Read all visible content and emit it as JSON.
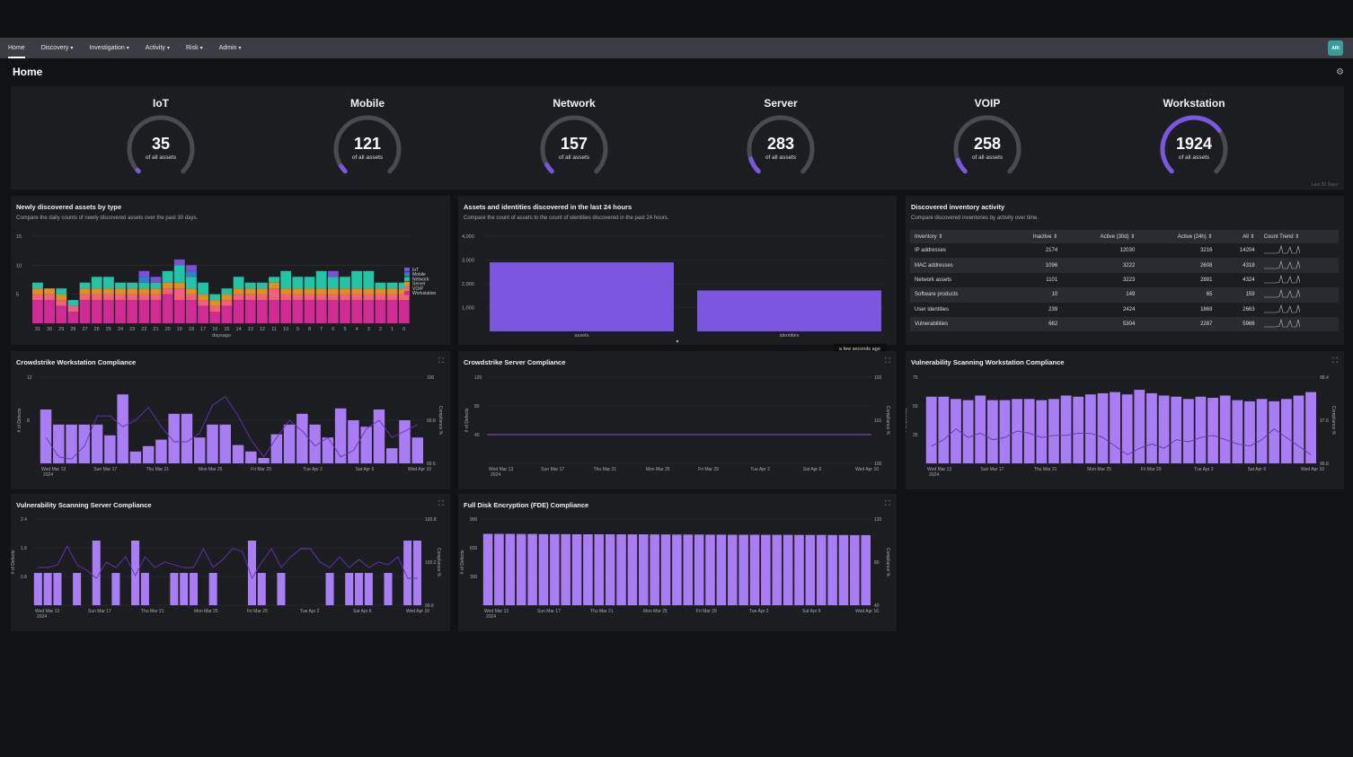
{
  "nav": {
    "items": [
      {
        "label": "Home",
        "active": true,
        "dropdown": false
      },
      {
        "label": "Discovery",
        "active": false,
        "dropdown": true
      },
      {
        "label": "Investigation",
        "active": false,
        "dropdown": true
      },
      {
        "label": "Activity",
        "active": false,
        "dropdown": true
      },
      {
        "label": "Risk",
        "active": false,
        "dropdown": true
      },
      {
        "label": "Admin",
        "active": false,
        "dropdown": true
      }
    ],
    "caret": "▾",
    "avatar": "ARI"
  },
  "page": {
    "title": "Home",
    "settings_icon": "gear-icon"
  },
  "colors": {
    "accent": "#7b56e0",
    "purple_light": "#a97ef5",
    "iot": "#7b4fd8",
    "mobile": "#2f7fd0",
    "network": "#22c3a6",
    "server": "#e0901e",
    "voip": "#f2607a",
    "workstation": "#d02a95"
  },
  "gauges": {
    "items": [
      {
        "title": "IoT",
        "value": "35",
        "sub": "of all assets",
        "fraction": 0.009
      },
      {
        "title": "Mobile",
        "value": "121",
        "sub": "of all assets",
        "fraction": 0.045
      },
      {
        "title": "Network",
        "value": "157",
        "sub": "of all assets",
        "fraction": 0.055
      },
      {
        "title": "Server",
        "value": "283",
        "sub": "of all assets",
        "fraction": 0.1
      },
      {
        "title": "VOIP",
        "value": "258",
        "sub": "of all assets",
        "fraction": 0.09
      },
      {
        "title": "Workstation",
        "value": "1924",
        "sub": "of all assets",
        "fraction": 0.7
      }
    ],
    "footnote": "Last 30 Days"
  },
  "panels": {
    "newly": {
      "title": "Newly discovered assets by type",
      "sub": "Compare the daily counts of newly discovered assets over the past 30 days."
    },
    "assets24": {
      "title": "Assets and identities discovered in the last 24 hours",
      "sub": "Compare the count of assets to the count of identities discovered in the past 24 hours.",
      "tooltip": "a few seconds ago"
    },
    "inventory": {
      "title": "Discovered inventory activity",
      "sub": "Compare discovered inventories by activity over time.",
      "columns": [
        "Inventory ⇕",
        "Inactive ⇕",
        "Active (30d) ⇕",
        "Active (24h) ⇕",
        "All ⇕",
        "Count Trend ⇕"
      ],
      "rows": [
        [
          "IP addresses",
          "2174",
          "12030",
          "3216",
          "14204"
        ],
        [
          "MAC addresses",
          "1096",
          "3222",
          "2608",
          "4318"
        ],
        [
          "Network assets",
          "1101",
          "3223",
          "2881",
          "4324"
        ],
        [
          "Software products",
          "10",
          "149",
          "65",
          "159"
        ],
        [
          "User identities",
          "239",
          "2424",
          "1869",
          "2663"
        ],
        [
          "Vulnerabilities",
          "662",
          "5304",
          "2287",
          "5966"
        ]
      ]
    },
    "cs_ws": {
      "title": "Crowdstrike Workstation Compliance"
    },
    "cs_srv": {
      "title": "Crowdstrike Server Compliance"
    },
    "vs_ws": {
      "title": "Vulnerability Scanning Workstation Compliance"
    },
    "vs_srv": {
      "title": "Vulnerability Scanning Server Compliance"
    },
    "fde": {
      "title": "Full Disk Encryption (FDE) Compliance"
    },
    "expand_icon": "expand-icon"
  },
  "chart_data": [
    {
      "type": "bar",
      "stacked": true,
      "title": "Newly discovered assets by type",
      "xlabel": "daysago",
      "ylabel": "",
      "ylim": [
        0,
        15
      ],
      "yticks": [
        0,
        5,
        10,
        15
      ],
      "categories": [
        "31",
        "30",
        "29",
        "28",
        "27",
        "26",
        "25",
        "24",
        "23",
        "22",
        "21",
        "20",
        "19",
        "18",
        "17",
        "16",
        "15",
        "14",
        "13",
        "12",
        "11",
        "10",
        "9",
        "8",
        "7",
        "6",
        "5",
        "4",
        "3",
        "2",
        "1",
        "0"
      ],
      "legend_position": "right",
      "series": [
        {
          "name": "Workstation",
          "color": "#d02a95",
          "values": [
            4,
            4,
            3,
            2,
            4,
            4,
            4,
            4,
            4,
            4,
            4,
            5,
            4,
            4,
            3,
            2,
            3,
            4,
            4,
            4,
            4,
            4,
            4,
            4,
            4,
            4,
            4,
            4,
            4,
            4,
            4,
            4
          ]
        },
        {
          "name": "VOIP",
          "color": "#f2607a",
          "values": [
            1,
            1,
            1,
            1,
            1,
            1,
            1,
            1,
            1,
            1,
            1,
            1,
            2,
            1,
            1,
            1,
            1,
            1,
            1,
            1,
            2,
            1,
            1,
            1,
            1,
            1,
            1,
            1,
            1,
            1,
            1,
            1
          ]
        },
        {
          "name": "Server",
          "color": "#e0901e",
          "values": [
            1,
            1,
            1,
            0,
            1,
            1,
            1,
            1,
            1,
            1,
            1,
            1,
            1,
            1,
            1,
            1,
            1,
            1,
            1,
            1,
            1,
            1,
            1,
            1,
            1,
            1,
            1,
            1,
            1,
            1,
            1,
            1
          ]
        },
        {
          "name": "Network",
          "color": "#22c3a6",
          "values": [
            1,
            0,
            1,
            1,
            1,
            2,
            2,
            1,
            1,
            1,
            1,
            2,
            3,
            2,
            2,
            1,
            1,
            2,
            1,
            1,
            1,
            3,
            2,
            2,
            3,
            2,
            2,
            3,
            3,
            1,
            1,
            1
          ]
        },
        {
          "name": "Mobile",
          "color": "#2f7fd0",
          "values": [
            0,
            0,
            0,
            0,
            0,
            0,
            0,
            0,
            0,
            1,
            0,
            0,
            0,
            1,
            0,
            0,
            0,
            0,
            0,
            0,
            0,
            0,
            0,
            0,
            0,
            0,
            0,
            0,
            0,
            0,
            0,
            0
          ]
        },
        {
          "name": "IoT",
          "color": "#7b4fd8",
          "values": [
            0,
            0,
            0,
            0,
            0,
            0,
            0,
            0,
            0,
            1,
            1,
            0,
            1,
            1,
            0,
            0,
            0,
            0,
            0,
            0,
            0,
            0,
            0,
            0,
            0,
            1,
            0,
            0,
            0,
            0,
            0,
            0
          ]
        }
      ]
    },
    {
      "type": "bar",
      "title": "Assets and identities discovered in the last 24 hours",
      "categories": [
        "assets",
        "identities"
      ],
      "values": [
        2900,
        1720
      ],
      "ylim": [
        0,
        4000
      ],
      "yticks": [
        1000,
        2000,
        3000,
        4000
      ],
      "ytick_labels": [
        "1,000",
        "2,000",
        "3,000",
        "4,000"
      ]
    },
    {
      "type": "bar+line",
      "title": "Crowdstrike Workstation Compliance",
      "ylabel": "# of Defects",
      "y2label": "Compliance %",
      "ylim": [
        4,
        12
      ],
      "yticks": [
        4,
        8,
        12
      ],
      "yticks_shown": [
        "",
        "8",
        "12"
      ],
      "y2lim": [
        99.6,
        100
      ],
      "y2ticks_shown": [
        "99.6",
        "99.8",
        "100"
      ],
      "xticks": [
        "Wed Mar 13\n2024",
        "Sun Mar 17",
        "Thu Mar 21",
        "Mon Mar 25",
        "Fri Mar 29",
        "Tue Apr 2",
        "Sat Apr 6",
        "Wed Apr 10"
      ],
      "bars": [
        9,
        7.6,
        7.6,
        7.6,
        7.6,
        6.6,
        10.4,
        5.1,
        5.6,
        6.2,
        8.6,
        8.6,
        6.4,
        7.6,
        7.6,
        5.7,
        5.1,
        4.5,
        6.7,
        7.6,
        8.6,
        7.6,
        6.4,
        9.1,
        8,
        7.4,
        9,
        5.4,
        8,
        6.4
      ],
      "line": [
        99.72,
        99.63,
        99.62,
        99.68,
        99.82,
        99.82,
        99.77,
        99.8,
        99.86,
        99.77,
        99.7,
        99.7,
        99.74,
        99.87,
        99.91,
        99.82,
        99.71,
        99.63,
        99.72,
        99.8,
        99.75,
        99.68,
        99.72,
        99.63,
        99.66,
        99.76,
        99.8,
        99.72,
        99.75,
        99.78
      ]
    },
    {
      "type": "bar+line",
      "title": "Crowdstrike Server Compliance",
      "ylabel": "# of Defects",
      "y2label": "Compliance %",
      "ylim": [
        0,
        120
      ],
      "yticks_shown": [
        "",
        "40",
        "80",
        "120"
      ],
      "y2lim": [
        99,
        102
      ],
      "y2ticks_shown": [
        "100",
        "101",
        "102"
      ],
      "xticks": [
        "Wed Mar 13\n2024",
        "Sun Mar 17",
        "Thu Mar 21",
        "Mon Mar 25",
        "Fri Mar 29",
        "Tue Apr 2",
        "Sat Apr 6",
        "Wed Apr 10"
      ],
      "bars": [],
      "line_constant": 100
    },
    {
      "type": "bar+line",
      "title": "Vulnerability Scanning Workstation Compliance",
      "ylabel": "# of Defects",
      "y2label": "Compliance %",
      "ylim": [
        0,
        75
      ],
      "yticks_shown": [
        "",
        "25",
        "50",
        "75"
      ],
      "y2lim": [
        96.4,
        98.4
      ],
      "y2ticks_shown": [
        "96.8",
        "97.6",
        "98.4"
      ],
      "xticks": [
        "Wed Mar 13\n2024",
        "Sun Mar 17",
        "Thu Mar 21",
        "Mon Mar 25",
        "Fri Mar 29",
        "Tue Apr 2",
        "Sat Apr 6",
        "Wed Apr 10"
      ],
      "bars": [
        58,
        58,
        56,
        55,
        59,
        55,
        55,
        56,
        56,
        55,
        56,
        59,
        58,
        60,
        61,
        62,
        60,
        64,
        61,
        59,
        58,
        56,
        58,
        57,
        59,
        55,
        54,
        56,
        54,
        56,
        59,
        62
      ],
      "line": [
        96.8,
        96.95,
        97.2,
        97.0,
        97.1,
        96.95,
        97.0,
        97.15,
        97.1,
        97.0,
        97.05,
        97.05,
        97.1,
        97.1,
        97.0,
        96.8,
        96.6,
        96.75,
        96.85,
        96.75,
        96.95,
        96.9,
        97.0,
        97.05,
        96.95,
        96.85,
        96.8,
        96.95,
        97.2,
        97.0,
        96.8,
        96.6
      ]
    },
    {
      "type": "bar+line",
      "title": "Vulnerability Scanning Server Compliance",
      "ylabel": "# of Defects",
      "y2label": "Compliance %",
      "ylim": [
        0,
        2.4
      ],
      "yticks_shown": [
        "",
        "0.8",
        "1.6",
        "2.4"
      ],
      "y2lim": [
        99.2,
        100.8
      ],
      "y2ticks_shown": [
        "99.6",
        "100.2",
        "100.8"
      ],
      "xticks": [
        "Wed Mar 13\n2024",
        "Sun Mar 17",
        "Thu Mar 21",
        "Mon Mar 25",
        "Fri Mar 29",
        "Tue Apr 2",
        "Sat Apr 6",
        "Wed Apr 10"
      ],
      "bars": [
        0.9,
        0.9,
        0.9,
        0,
        0.9,
        0,
        1.8,
        0,
        0.9,
        0,
        1.8,
        0.9,
        0,
        0,
        0.9,
        0.9,
        0.9,
        0,
        0.9,
        0,
        0,
        0,
        1.8,
        0.9,
        0,
        0.9,
        0,
        0,
        0,
        0,
        0.9,
        0,
        0.9,
        0.9,
        0.9,
        0,
        0.9,
        0,
        1.8,
        1.8
      ],
      "line": [
        99.9,
        99.9,
        99.95,
        100.3,
        99.95,
        99.85,
        99.7,
        100.0,
        99.9,
        100.1,
        99.75,
        100.1,
        99.9,
        100.0,
        99.95,
        99.9,
        99.9,
        100.25,
        99.9,
        100.05,
        100.25,
        100.2,
        99.7,
        100.0,
        100.25,
        99.9,
        100.1,
        100.25,
        100.25,
        100.0,
        99.9,
        100.1,
        99.9,
        100.05,
        99.9,
        100.0,
        99.95,
        100.1,
        99.7,
        99.7
      ]
    },
    {
      "type": "bar",
      "title": "Full Disk Encryption (FDE) Compliance",
      "ylabel": "# of Defects",
      "y2label": "Compliance %",
      "ylim": [
        0,
        900
      ],
      "yticks_shown": [
        "",
        "300",
        "600",
        "900"
      ],
      "y2ticks_shown": [
        "40",
        "80",
        "120"
      ],
      "xticks": [
        "Wed Mar 13\n2024",
        "Sun Mar 17",
        "Thu Mar 21",
        "Mon Mar 25",
        "Fri Mar 29",
        "Tue Apr 2",
        "Sat Apr 6",
        "Wed Apr 10"
      ],
      "bars": [
        745,
        745,
        745,
        744,
        744,
        742,
        742,
        742,
        741,
        741,
        741,
        741,
        740,
        740,
        740,
        739,
        739,
        738,
        738,
        738,
        737,
        737,
        736,
        736,
        736,
        735,
        735,
        735,
        734,
        734,
        734,
        733,
        733,
        732,
        732
      ]
    }
  ]
}
